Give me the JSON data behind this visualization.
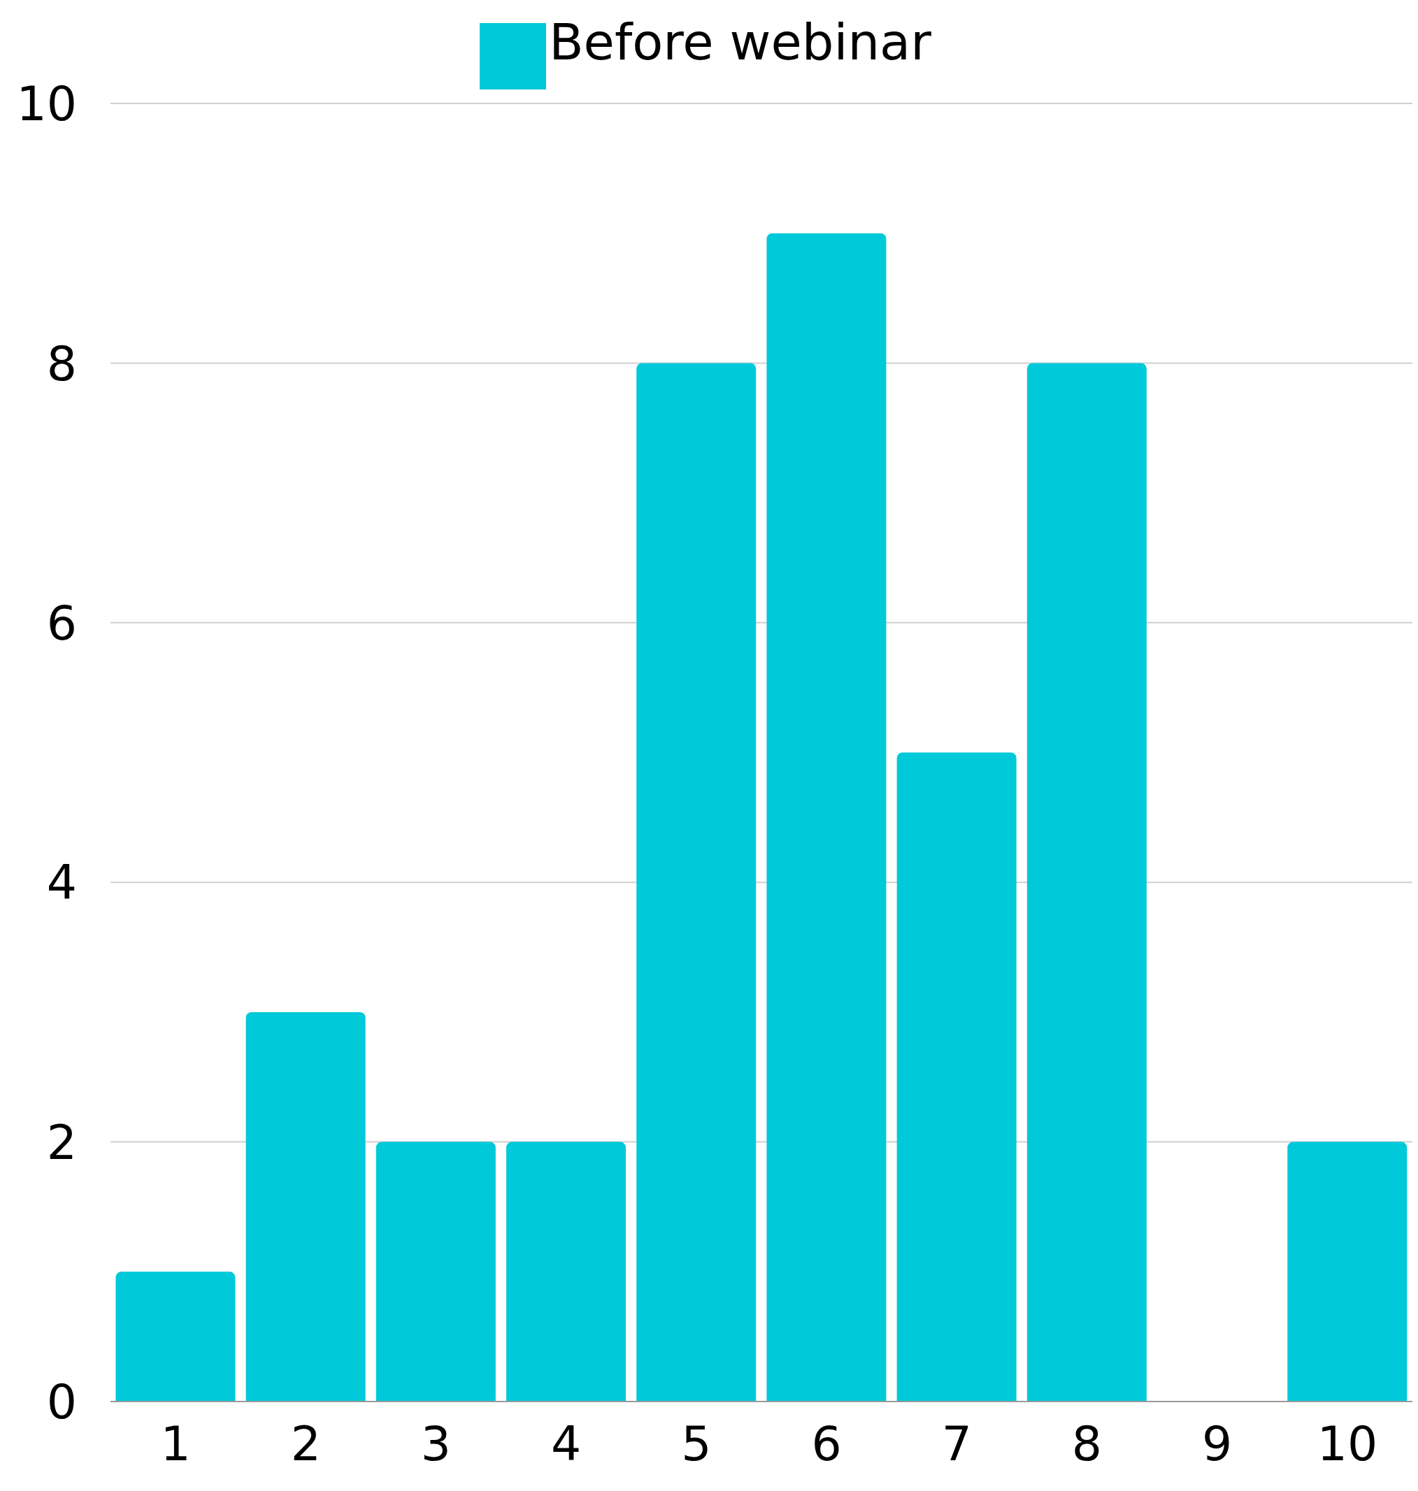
{
  "chart_data": {
    "type": "bar",
    "categories": [
      "1",
      "2",
      "3",
      "4",
      "5",
      "6",
      "7",
      "8",
      "9",
      "10"
    ],
    "series": [
      {
        "name": "Before webinar",
        "color": "#00c9d9",
        "values": [
          1,
          3,
          2,
          2,
          8,
          9,
          5,
          8,
          0,
          2
        ]
      }
    ],
    "ylim": [
      0,
      10
    ],
    "yticks": [
      0,
      2,
      4,
      6,
      8,
      10
    ],
    "grid": "y",
    "legend": "top"
  }
}
